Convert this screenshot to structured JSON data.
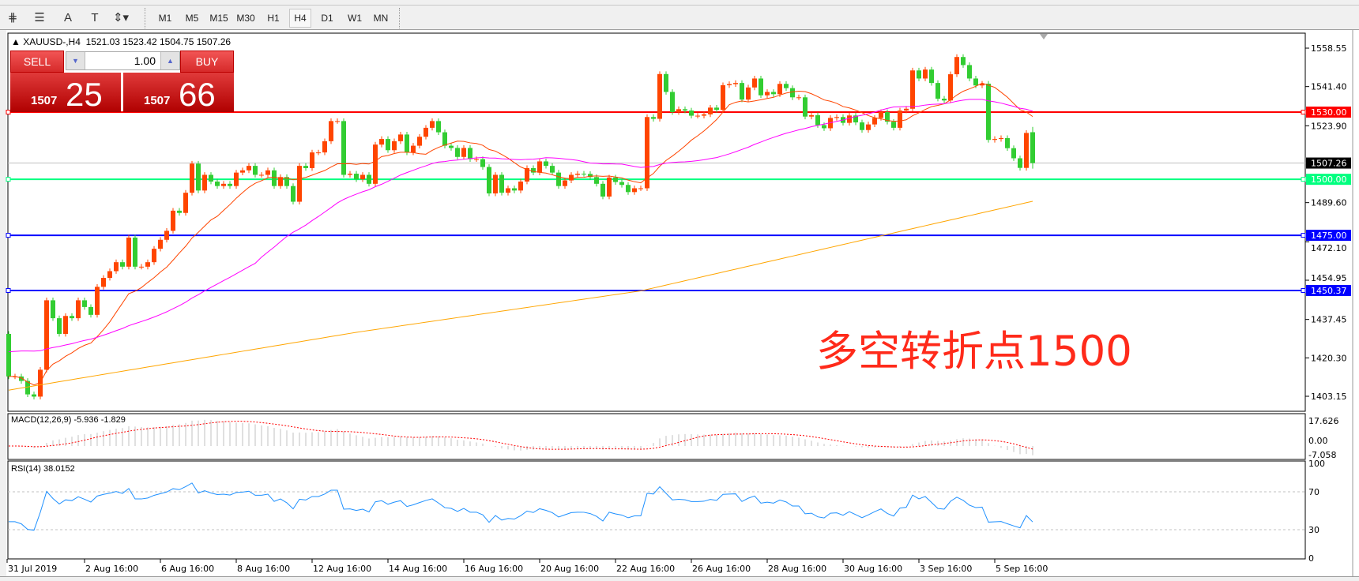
{
  "toolbar": {
    "tools": [
      {
        "icon": "fibonacci-expansion-icon",
        "glyph": "⋕"
      },
      {
        "icon": "fibonacci-fan-icon",
        "glyph": "☰"
      },
      {
        "icon": "text-label-icon",
        "glyph": "A"
      },
      {
        "icon": "text-box-icon",
        "glyph": "T"
      },
      {
        "icon": "arrows-dropdown-icon",
        "glyph": "⇕▾"
      }
    ],
    "timeframes": [
      "M1",
      "M5",
      "M15",
      "M30",
      "H1",
      "H4",
      "D1",
      "W1",
      "MN"
    ],
    "selected_timeframe": "H4"
  },
  "header": {
    "symbol": "XAUUSD-,H4",
    "ohlc": "1521.03 1523.42 1504.75 1507.26"
  },
  "trade_panel": {
    "sell_label": "SELL",
    "buy_label": "BUY",
    "lot": "1.00",
    "sell_price_small": "1507",
    "sell_price_big": "25",
    "buy_price_small": "1507",
    "buy_price_big": "66"
  },
  "annotation": "多空转折点1500",
  "indicators": {
    "macd_label": "MACD(12,26,9) -5.936 -1.829",
    "rsi_label": "RSI(14) 38.0152"
  },
  "chart_data": {
    "type": "candlestick",
    "symbol": "XAUUSD-",
    "timeframe": "H4",
    "last_bar": {
      "open": 1521.03,
      "high": 1523.42,
      "low": 1504.75,
      "close": 1507.26
    },
    "first_open": 1431,
    "closes": [
      1412,
      1412,
      1410,
      1404,
      1403,
      1415,
      1446,
      1438,
      1431,
      1439,
      1438,
      1446,
      1443,
      1439.5,
      1452,
      1456,
      1459,
      1463,
      1461,
      1474,
      1461,
      1461,
      1463,
      1469,
      1473,
      1477,
      1486,
      1485,
      1494,
      1507,
      1495,
      1502,
      1499,
      1497,
      1498,
      1497,
      1503,
      1504,
      1506,
      1502,
      1502,
      1504,
      1497,
      1501,
      1497,
      1490,
      1506,
      1505,
      1512,
      1512,
      1517,
      1526,
      1526,
      1502,
      1502.5,
      1500,
      1502,
      1498,
      1515.5,
      1518,
      1513,
      1517,
      1520,
      1512,
      1515,
      1519,
      1523,
      1526,
      1521,
      1515,
      1514,
      1510,
      1514,
      1509,
      1509,
      1505.5,
      1493.7,
      1502,
      1494,
      1496,
      1495,
      1499,
      1505,
      1503,
      1508,
      1506,
      1503,
      1497,
      1499.5,
      1502,
      1502.5,
      1502.4,
      1501,
      1498,
      1492.3,
      1500.8,
      1498.8,
      1497.5,
      1494.3,
      1496,
      1496,
      1527.8,
      1527,
      1547,
      1539,
      1530,
      1531.3,
      1530.7,
      1528.4,
      1528.4,
      1529,
      1532,
      1531,
      1542,
      1542.5,
      1543,
      1535.6,
      1541,
      1545,
      1537.5,
      1539,
      1538,
      1542.6,
      1540.7,
      1536.6,
      1536.6,
      1528,
      1528.6,
      1524.2,
      1522.8,
      1527.4,
      1527.8,
      1525.2,
      1528.5,
      1525.4,
      1522,
      1524.5,
      1527.4,
      1530,
      1525.7,
      1523,
      1530.7,
      1531.5,
      1548.6,
      1545,
      1549,
      1543,
      1536,
      1535.2,
      1546.9,
      1554.6,
      1551,
      1545,
      1541.9,
      1542.7,
      1517.6,
      1518,
      1518.4,
      1513.9,
      1509.4,
      1505.1,
      1520.7,
      1507.26
    ],
    "long_ma_samples": [
      [
        0,
        1405.9
      ],
      [
        55,
        1431.7
      ],
      [
        100,
        1450.2
      ],
      [
        143,
        1478
      ],
      [
        162,
        1490.2
      ]
    ],
    "price_ticks": [
      "1558.55",
      "1541.40",
      "1523.90",
      "1489.60",
      "1472.10",
      "1454.95",
      "1437.45",
      "1420.30",
      "1403.15"
    ],
    "price_range": [
      1403.15,
      1558.55
    ],
    "horizontal_lines": [
      {
        "price": 1530.0,
        "label": "1530.00",
        "color": "#ff0000"
      },
      {
        "price": 1500.0,
        "label": "1500.00",
        "color": "#00ff7f"
      },
      {
        "price": 1475.0,
        "label": "1475.00",
        "color": "#0000ff"
      },
      {
        "price": 1450.37,
        "label": "1450.37",
        "color": "#0000ff"
      }
    ],
    "current_price": {
      "price": 1507.26,
      "label": "1507.26"
    },
    "date_labels": [
      "31 Jul 2019",
      "2 Aug 16:00",
      "6 Aug 16:00",
      "8 Aug 16:00",
      "12 Aug 16:00",
      "14 Aug 16:00",
      "16 Aug 16:00",
      "20 Aug 16:00",
      "22 Aug 16:00",
      "26 Aug 16:00",
      "28 Aug 16:00",
      "30 Aug 16:00",
      "3 Sep 16:00",
      "5 Sep 16:00"
    ],
    "macd_ticks": [
      "17.626",
      "0.00",
      "-7.058"
    ],
    "rsi_ticks": [
      "100",
      "70",
      "30",
      "0"
    ],
    "rsi_levels": [
      70,
      30
    ],
    "colors": {
      "up": "#ff4500",
      "down": "#32cd32",
      "ma_fast": "#ff4500",
      "ma_mid": "#ff00ff",
      "ma_long": "#ffa500",
      "macd_hist": "#c0c0c0",
      "macd_signal": "#ff0000",
      "rsi": "#1e90ff"
    }
  }
}
